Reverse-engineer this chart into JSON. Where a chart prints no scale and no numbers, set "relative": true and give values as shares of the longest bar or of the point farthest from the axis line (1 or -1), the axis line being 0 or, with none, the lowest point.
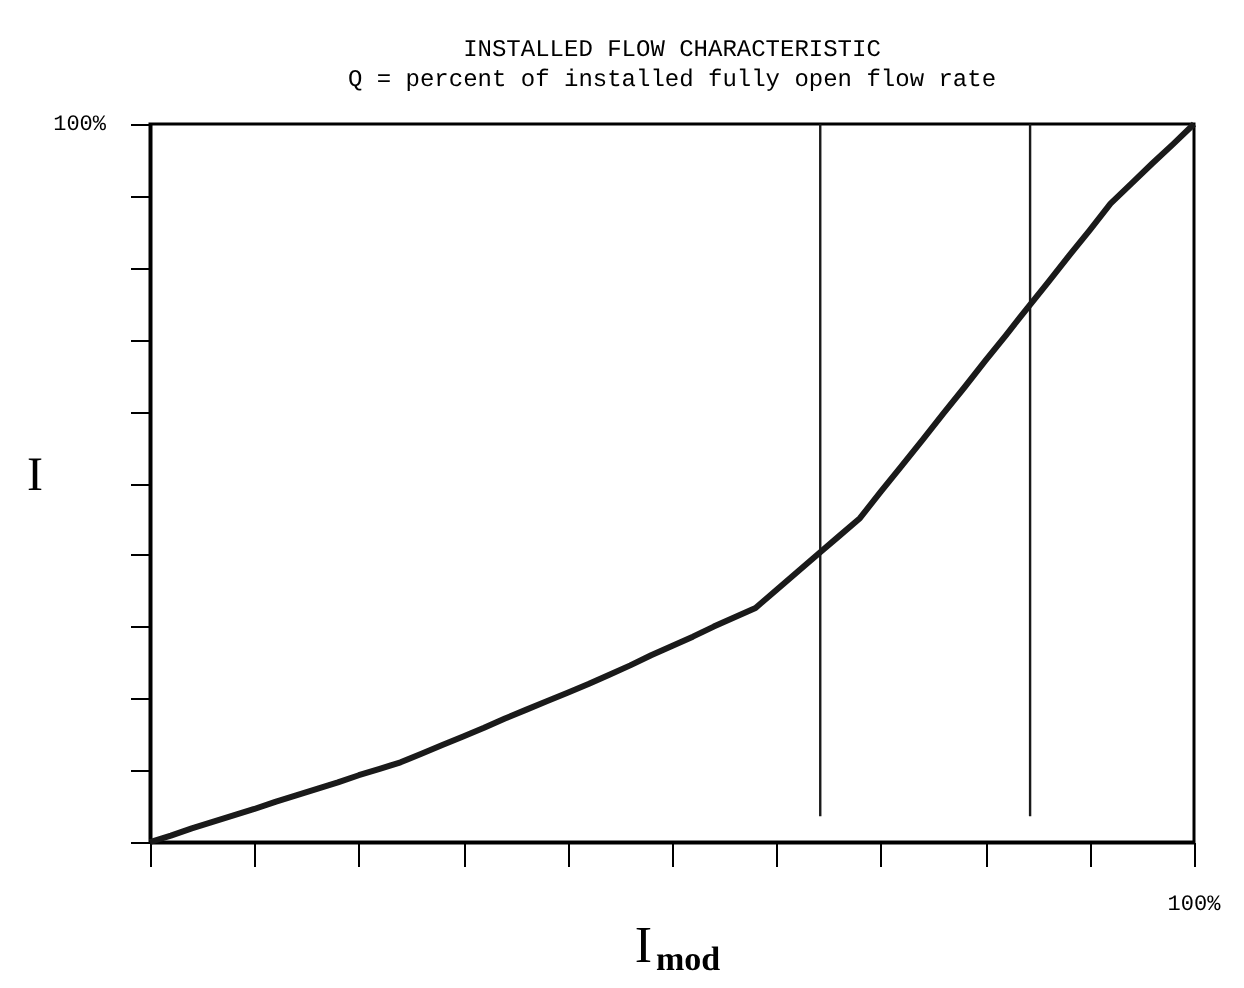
{
  "chart_data": {
    "type": "line",
    "title": "INSTALLED FLOW CHARACTERISTIC",
    "subtitle": "Q = percent of installed fully open flow rate",
    "xlabel": "I$_{mod}$",
    "ylabel": "I",
    "relative": true,
    "categories": [
      null,
      null,
      null,
      null,
      null,
      null,
      null,
      null,
      null,
      null,
      null,
      null,
      null,
      null,
      null,
      null,
      null,
      null,
      null,
      null,
      null,
      null,
      null,
      null,
      null,
      null,
      null,
      null,
      null,
      null,
      null,
      null,
      null,
      null,
      null,
      null,
      null,
      null,
      null,
      null,
      null,
      null,
      null,
      null,
      null,
      null,
      null,
      null,
      null,
      null,
      null
    ],
    "series": [
      {
        "color": "#1a1a1a",
        "values": [
          0,
          0.009,
          0.019,
          0.028,
          0.037,
          0.046,
          0.056,
          0.065,
          0.074,
          0.083,
          0.093,
          0.102,
          0.111,
          0.123,
          0.135,
          0.147,
          0.159,
          0.172,
          0.184,
          0.196,
          0.208,
          0.22,
          0.233,
          0.246,
          0.26,
          0.273,
          0.286,
          0.3,
          0.313,
          0.326,
          0.351,
          0.376,
          0.401,
          0.426,
          0.451,
          0.488,
          0.524,
          0.56,
          0.597,
          0.633,
          0.67,
          0.706,
          0.743,
          0.779,
          0.816,
          0.852,
          0.889,
          0.917,
          0.945,
          0.972,
          1
        ]
      }
    ],
    "annotations": [
      "100%",
      "100%"
    ],
    "grid": false,
    "marker": "none",
    "line_style": "solid"
  }
}
